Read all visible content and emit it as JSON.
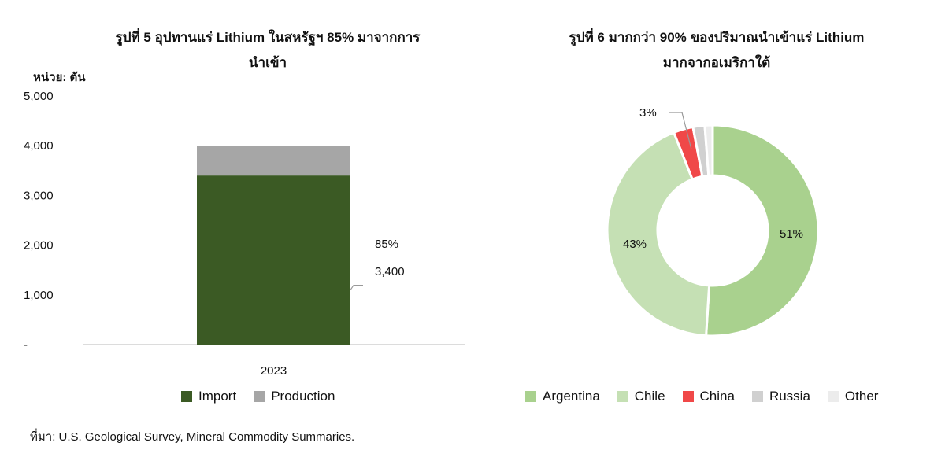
{
  "source_note": "ที่มา: U.S. Geological Survey, Mineral Commodity Summaries.",
  "chart_data": [
    {
      "type": "bar",
      "stacked": true,
      "title_lines": [
        "รูปที่ 5 อุปทานแร่ Lithium ในสหรัฐฯ 85% มาจากการ",
        "นำเข้า"
      ],
      "unit_label": "หน่วย: ตัน",
      "categories": [
        "2023"
      ],
      "series": [
        {
          "name": "Import",
          "values": [
            3400
          ],
          "color": "#3b5a24"
        },
        {
          "name": "Production",
          "values": [
            600
          ],
          "color": "#a6a6a6"
        }
      ],
      "ylim": [
        0,
        5000
      ],
      "yticks": [
        {
          "value": 0,
          "label": "-"
        },
        {
          "value": 1000,
          "label": "1,000"
        },
        {
          "value": 2000,
          "label": "2,000"
        },
        {
          "value": 3000,
          "label": "3,000"
        },
        {
          "value": 4000,
          "label": "4,000"
        },
        {
          "value": 5000,
          "label": "5,000"
        }
      ],
      "annotation": {
        "percent": "85%",
        "value": "3,400"
      },
      "grid": false,
      "legend_position": "bottom"
    },
    {
      "type": "pie",
      "donut": true,
      "title_lines": [
        "รูปที่ 6 มากกว่า 90% ของปริมาณนำเข้าแร่ Lithium",
        "มากจากอเมริกาใต้"
      ],
      "slices": [
        {
          "name": "Argentina",
          "value": 51,
          "label": "51%",
          "color": "#a9d18e"
        },
        {
          "name": "Chile",
          "value": 43,
          "label": "43%",
          "color": "#c5e0b4"
        },
        {
          "name": "China",
          "value": 3,
          "label": "3%",
          "color": "#f04848"
        },
        {
          "name": "Russia",
          "value": 1.8,
          "label": "",
          "color": "#d0d0d0"
        },
        {
          "name": "Other",
          "value": 1.2,
          "label": "",
          "color": "#ececec"
        }
      ],
      "legend_position": "bottom"
    }
  ]
}
